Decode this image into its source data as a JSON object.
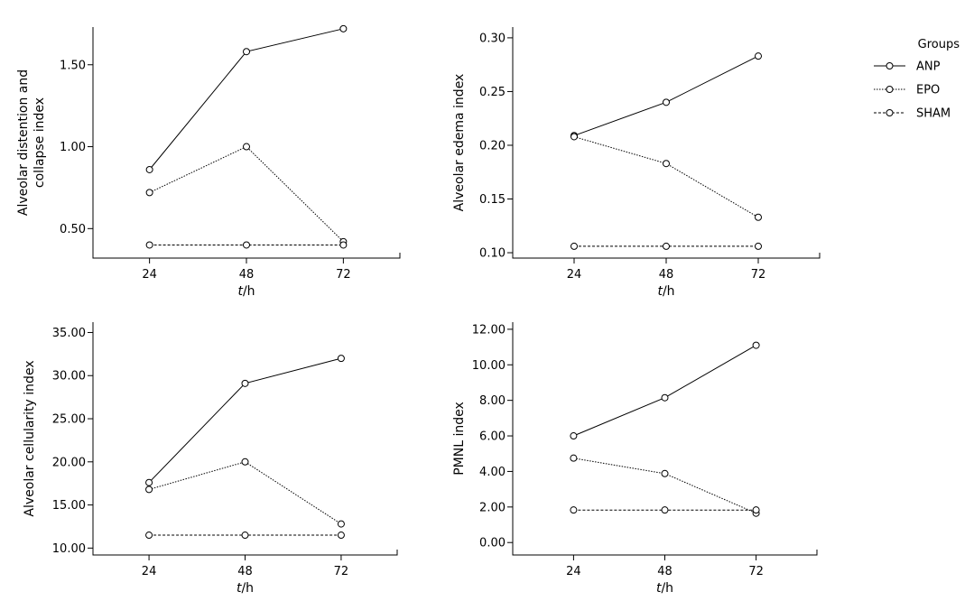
{
  "legend": {
    "title": "Groups",
    "placement": "top-right",
    "items": [
      {
        "label": "ANP",
        "dash": "solid"
      },
      {
        "label": "EPO",
        "dash": "dotted"
      },
      {
        "label": "SHAM",
        "dash": "dashed"
      }
    ]
  },
  "chart_data": [
    {
      "type": "line",
      "ylabel": [
        "Alveolar distention and",
        "collapse index"
      ],
      "xlabel": {
        "italic": "t",
        "rest": "/h"
      },
      "x": [
        24,
        48,
        72
      ],
      "xticks": [
        "24",
        "48",
        "72"
      ],
      "xlim": [
        10,
        86
      ],
      "ylim": [
        0.32,
        1.73
      ],
      "yticks": [
        0.5,
        1.0,
        1.5
      ],
      "ytick_labels": [
        "0.50",
        "1.00",
        "1.50"
      ],
      "grid": false,
      "series": [
        {
          "name": "ANP",
          "values": [
            0.86,
            1.58,
            1.72
          ]
        },
        {
          "name": "EPO",
          "values": [
            0.72,
            1.0,
            0.42
          ]
        },
        {
          "name": "SHAM",
          "values": [
            0.4,
            0.4,
            0.4
          ]
        }
      ]
    },
    {
      "type": "line",
      "ylabel": [
        "Alveolar edema index"
      ],
      "xlabel": {
        "italic": "t",
        "rest": "/h"
      },
      "x": [
        24,
        48,
        72
      ],
      "xticks": [
        "24",
        "48",
        "72"
      ],
      "xlim": [
        8,
        88
      ],
      "ylim": [
        0.095,
        0.31
      ],
      "yticks": [
        0.1,
        0.15,
        0.2,
        0.25,
        0.3
      ],
      "ytick_labels": [
        "0.10",
        "0.15",
        "0.20",
        "0.25",
        "0.30"
      ],
      "grid": false,
      "series": [
        {
          "name": "ANP",
          "values": [
            0.209,
            0.24,
            0.283
          ]
        },
        {
          "name": "EPO",
          "values": [
            0.208,
            0.183,
            0.133
          ]
        },
        {
          "name": "SHAM",
          "values": [
            0.106,
            0.106,
            0.106
          ]
        }
      ]
    },
    {
      "type": "line",
      "ylabel": [
        "Alveolar cellularity index"
      ],
      "xlabel": {
        "italic": "t",
        "rest": "/h"
      },
      "x": [
        24,
        48,
        72
      ],
      "xticks": [
        "24",
        "48",
        "72"
      ],
      "xlim": [
        10,
        86
      ],
      "ylim": [
        9.2,
        36.2
      ],
      "yticks": [
        10,
        15,
        20,
        25,
        30,
        35
      ],
      "ytick_labels": [
        "10.00",
        "15.00",
        "20.00",
        "25.00",
        "30.00",
        "35.00"
      ],
      "grid": false,
      "series": [
        {
          "name": "ANP",
          "values": [
            17.6,
            29.1,
            32.0
          ]
        },
        {
          "name": "EPO",
          "values": [
            16.8,
            20.0,
            12.8
          ]
        },
        {
          "name": "SHAM",
          "values": [
            11.5,
            11.5,
            11.5
          ]
        }
      ]
    },
    {
      "type": "line",
      "ylabel": [
        "PMNL index"
      ],
      "xlabel": {
        "italic": "t",
        "rest": "/h"
      },
      "x": [
        24,
        48,
        72
      ],
      "xticks": [
        "24",
        "48",
        "72"
      ],
      "xlim": [
        8,
        88
      ],
      "ylim": [
        -0.7,
        12.4
      ],
      "yticks": [
        0,
        2,
        4,
        6,
        8,
        10,
        12
      ],
      "ytick_labels": [
        "0.00",
        "2.00",
        "4.00",
        "6.00",
        "8.00",
        "10.00",
        "12.00"
      ],
      "grid": false,
      "series": [
        {
          "name": "ANP",
          "values": [
            6.0,
            8.15,
            11.1
          ]
        },
        {
          "name": "EPO",
          "values": [
            4.75,
            3.88,
            1.65
          ]
        },
        {
          "name": "SHAM",
          "values": [
            1.83,
            1.83,
            1.83
          ]
        }
      ]
    }
  ]
}
